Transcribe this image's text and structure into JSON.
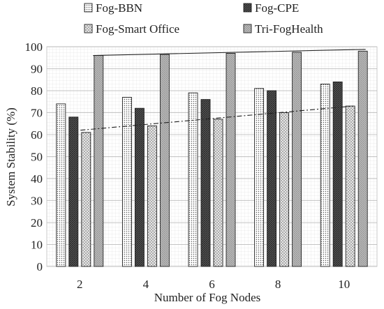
{
  "chart_data": {
    "type": "bar",
    "xlabel": "Number of Fog Nodes",
    "ylabel": "System Stability (%)",
    "categories": [
      "2",
      "4",
      "6",
      "8",
      "10"
    ],
    "ylim": [
      0,
      100
    ],
    "yticks": [
      0,
      10,
      20,
      30,
      40,
      50,
      60,
      70,
      80,
      90,
      100
    ],
    "grid": true,
    "legend_position": "top",
    "series": [
      {
        "name": "Fog-BBN",
        "values": [
          74,
          77,
          79,
          81,
          83
        ],
        "pattern": "dots",
        "color": "#555555"
      },
      {
        "name": "Fog-CPE",
        "values": [
          68,
          72,
          76,
          80,
          84
        ],
        "pattern": "dense-diagonal",
        "color": "#333333"
      },
      {
        "name": "Fog-Smart Office",
        "values": [
          61,
          64,
          67,
          70,
          73
        ],
        "pattern": "cross-dots",
        "color": "#777777"
      },
      {
        "name": "Tri-FogHealth",
        "values": [
          96,
          96.5,
          97,
          97.5,
          98
        ],
        "pattern": "light-grid",
        "color": "#999999"
      }
    ],
    "trendlines": [
      {
        "series": "Tri-FogHealth",
        "style": "solid",
        "from": [
          2,
          96
        ],
        "to": [
          10,
          98.8
        ]
      },
      {
        "series": "Fog-Smart Office",
        "style": "dash-dot",
        "from": [
          2,
          62
        ],
        "to": [
          10,
          73
        ]
      }
    ]
  }
}
